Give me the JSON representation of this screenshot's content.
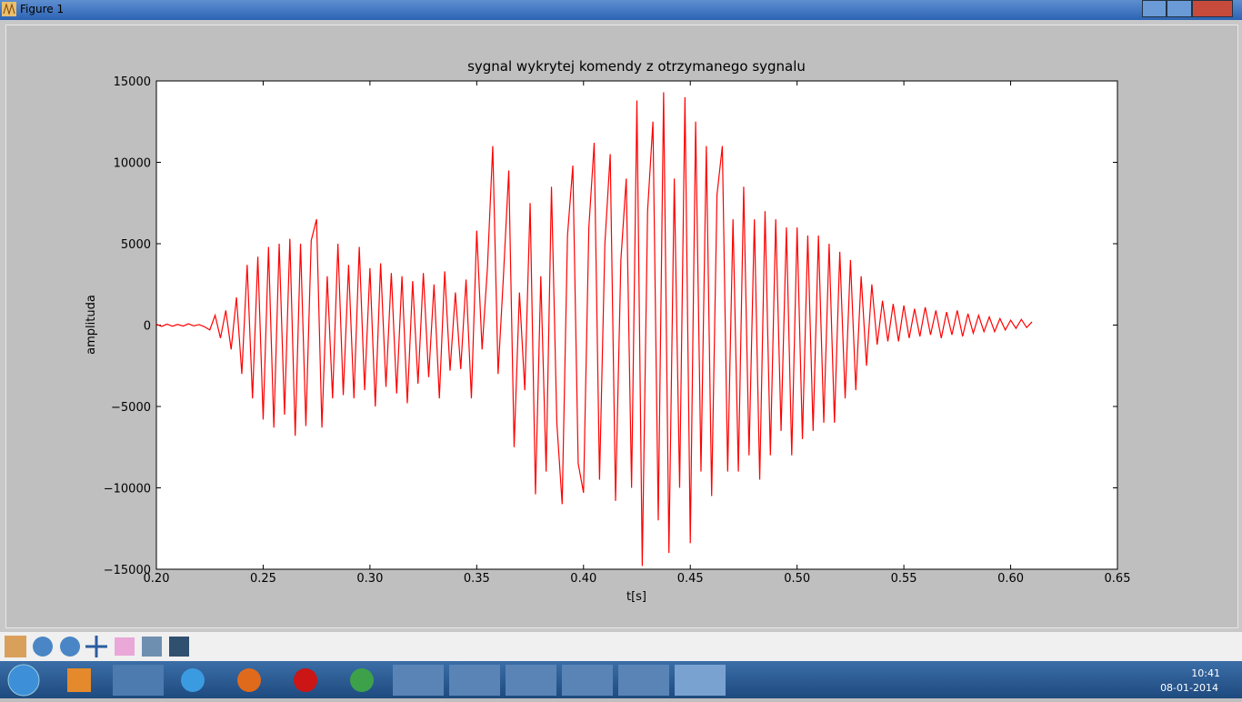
{
  "window": {
    "title": "Figure 1"
  },
  "taskbar": {
    "time": "10:41",
    "date": "08-01-2014"
  },
  "chart_data": {
    "type": "line",
    "title": "sygnal wykrytej komendy z otrzymanego sygnalu",
    "xlabel": "t[s]",
    "ylabel": "amplituda",
    "color": "#ff0000",
    "x": [
      0.2,
      0.2025,
      0.205,
      0.2075,
      0.21,
      0.2125,
      0.215,
      0.2175,
      0.22,
      0.2225,
      0.225,
      0.2275,
      0.23,
      0.2325,
      0.235,
      0.2375,
      0.24,
      0.2425,
      0.245,
      0.2475,
      0.25,
      0.2525,
      0.255,
      0.2575,
      0.26,
      0.2625,
      0.265,
      0.2675,
      0.27,
      0.2725,
      0.275,
      0.2775,
      0.28,
      0.2825,
      0.285,
      0.2875,
      0.29,
      0.2925,
      0.295,
      0.2975,
      0.3,
      0.3025,
      0.305,
      0.3075,
      0.31,
      0.3125,
      0.315,
      0.3175,
      0.32,
      0.3225,
      0.325,
      0.3275,
      0.33,
      0.3325,
      0.335,
      0.3375,
      0.34,
      0.3425,
      0.345,
      0.3475,
      0.35,
      0.3525,
      0.355,
      0.3575,
      0.36,
      0.3625,
      0.365,
      0.3675,
      0.37,
      0.3725,
      0.375,
      0.3775,
      0.38,
      0.3825,
      0.385,
      0.3875,
      0.39,
      0.3925,
      0.395,
      0.3975,
      0.4,
      0.4025,
      0.405,
      0.4075,
      0.41,
      0.4125,
      0.415,
      0.4175,
      0.42,
      0.4225,
      0.425,
      0.4275,
      0.43,
      0.4325,
      0.435,
      0.4375,
      0.44,
      0.4425,
      0.445,
      0.4475,
      0.45,
      0.4525,
      0.455,
      0.4575,
      0.46,
      0.4625,
      0.465,
      0.4675,
      0.47,
      0.4725,
      0.475,
      0.4775,
      0.48,
      0.4825,
      0.485,
      0.4875,
      0.49,
      0.4925,
      0.495,
      0.4975,
      0.5,
      0.5025,
      0.505,
      0.5075,
      0.51,
      0.5125,
      0.515,
      0.5175,
      0.52,
      0.5225,
      0.525,
      0.5275,
      0.53,
      0.5325,
      0.535,
      0.5375,
      0.54,
      0.5425,
      0.545,
      0.5475,
      0.55,
      0.5525,
      0.555,
      0.5575,
      0.56,
      0.5625,
      0.565,
      0.5675,
      0.57,
      0.5725,
      0.575,
      0.5775,
      0.58,
      0.5825,
      0.585,
      0.5875,
      0.59,
      0.5925,
      0.595,
      0.5975,
      0.6,
      0.6025,
      0.605,
      0.6075,
      0.61
    ],
    "values": [
      50,
      -80,
      60,
      -70,
      40,
      -60,
      80,
      -50,
      30,
      -100,
      -300,
      600,
      -800,
      900,
      -1500,
      1700,
      -3000,
      3700,
      -4500,
      4200,
      -5800,
      4800,
      -6300,
      5000,
      -5500,
      5300,
      -6800,
      5000,
      -6200,
      5200,
      6500,
      -6300,
      3000,
      -4500,
      5000,
      -4300,
      3700,
      -4500,
      4800,
      -4000,
      3500,
      -5000,
      3800,
      -3800,
      3200,
      -4200,
      3000,
      -4800,
      2700,
      -3600,
      3200,
      -3200,
      2500,
      -4500,
      3300,
      -2800,
      2000,
      -2700,
      2800,
      -4500,
      5800,
      -1500,
      3500,
      11000,
      -3000,
      3000,
      9500,
      -7500,
      2000,
      -4000,
      7500,
      -10400,
      3000,
      -9000,
      8500,
      -6000,
      -11000,
      5500,
      9800,
      -8500,
      -10300,
      6000,
      11200,
      -9500,
      5000,
      10500,
      -10800,
      4000,
      9000,
      -10000,
      13800,
      -14800,
      7000,
      12500,
      -12000,
      14300,
      -14000,
      9000,
      -10000,
      14000,
      -13400,
      12500,
      -9000,
      11000,
      -10500,
      8000,
      11000,
      -9000,
      6500,
      -9000,
      8500,
      -8000,
      6500,
      -9500,
      7000,
      -8000,
      6500,
      -6500,
      6000,
      -8000,
      6000,
      -7000,
      5500,
      -6500,
      5500,
      -6000,
      5000,
      -6000,
      4500,
      -4500,
      4000,
      -4000,
      3000,
      -2500,
      2500,
      -1200,
      1500,
      -1000,
      1300,
      -1000,
      1200,
      -800,
      1000,
      -700,
      1100,
      -600,
      900,
      -800,
      800,
      -600,
      900,
      -700,
      700,
      -500,
      600,
      -400,
      500,
      -400,
      400,
      -300,
      300,
      -200,
      350,
      -150,
      200
    ],
    "xlim": [
      0.2,
      0.65
    ],
    "xticks": [
      {
        "value": 0.2,
        "label": "0.20"
      },
      0.25,
      {
        "value": 0.3,
        "label": "0.30"
      },
      0.35,
      {
        "value": 0.4,
        "label": "0.40"
      },
      0.45,
      {
        "value": 0.5,
        "label": "0.50"
      },
      0.55,
      {
        "value": 0.6,
        "label": "0.60"
      },
      0.65
    ],
    "ylim": [
      -15000,
      15000
    ],
    "yticks": [
      {
        "value": -15000,
        "label": "−15000"
      },
      {
        "value": -10000,
        "label": "−10000"
      },
      {
        "value": -5000,
        "label": "−5000"
      },
      0,
      5000,
      10000,
      15000
    ],
    "grid": false
  }
}
